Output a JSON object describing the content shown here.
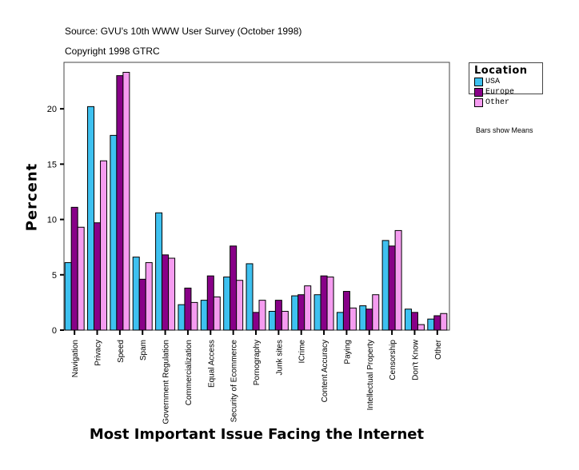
{
  "source": "Source: GVU's 10th WWW User Survey (October 1998)",
  "copyright": "Copyright 1998 GTRC",
  "note": "Bars show Means",
  "chart_data": {
    "type": "bar",
    "xlabel": "Most Important Issue Facing the Internet",
    "ylabel": "Percent",
    "ylim": [
      0,
      24.2
    ],
    "yticks": [
      0,
      5,
      10,
      15,
      20
    ],
    "grid": false,
    "legend_title": "Location",
    "legend_position": "right",
    "categories": [
      "Navigation",
      "Privacy",
      "Speed",
      "Spam",
      "Government Regulation",
      "Commercialization",
      "Equal Access",
      "Security of Ecommerce",
      "Pornography",
      "Junk sites",
      "ICrime",
      "Content Accuracy",
      "Paying",
      "Intellectual Property",
      "Censorship",
      "Don't Know",
      "Other"
    ],
    "series": [
      {
        "name": "USA",
        "color": "#3EC1F0",
        "values": [
          6.1,
          20.2,
          17.6,
          6.6,
          10.6,
          2.3,
          2.7,
          4.8,
          6.0,
          1.7,
          3.1,
          3.2,
          1.6,
          2.2,
          8.1,
          1.9,
          1.0
        ]
      },
      {
        "name": "Europe",
        "color": "#880088",
        "values": [
          11.1,
          9.7,
          23.0,
          4.6,
          6.8,
          3.8,
          4.9,
          7.6,
          1.6,
          2.7,
          3.2,
          4.9,
          3.5,
          1.9,
          7.6,
          1.6,
          1.3
        ]
      },
      {
        "name": "Other",
        "color": "#F59CF0",
        "values": [
          9.3,
          15.3,
          23.3,
          6.1,
          6.5,
          2.5,
          3.0,
          4.5,
          2.7,
          1.7,
          4.0,
          4.8,
          2.0,
          3.2,
          9.0,
          0.5,
          1.5
        ]
      }
    ]
  }
}
